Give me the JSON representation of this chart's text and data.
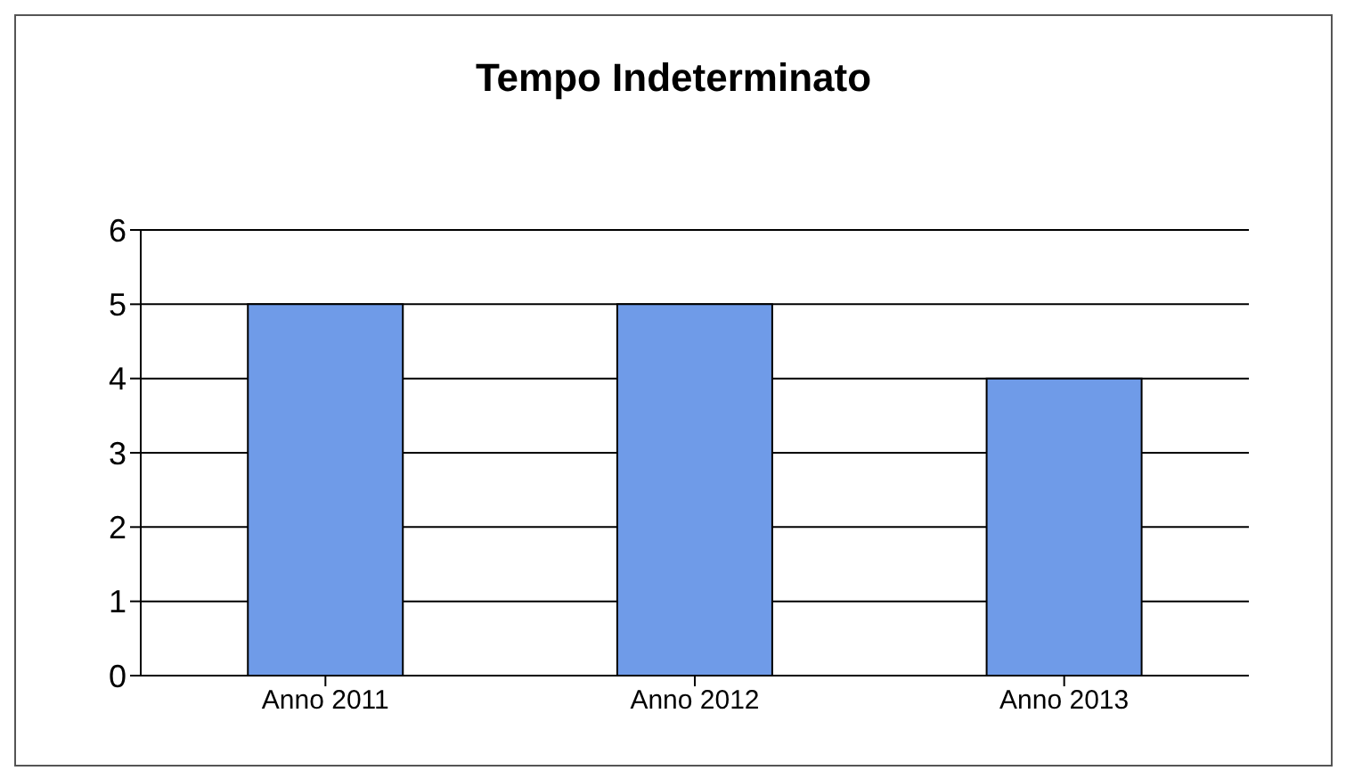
{
  "chart_data": {
    "type": "bar",
    "title": "Tempo Indeterminato",
    "categories": [
      "Anno 2011",
      "Anno 2012",
      "Anno 2013"
    ],
    "values": [
      5,
      5,
      4
    ],
    "color": "#6f9be8",
    "ylim": [
      0,
      6
    ],
    "yticks": [
      0,
      1,
      2,
      3,
      4,
      5,
      6
    ],
    "grid": "y"
  }
}
